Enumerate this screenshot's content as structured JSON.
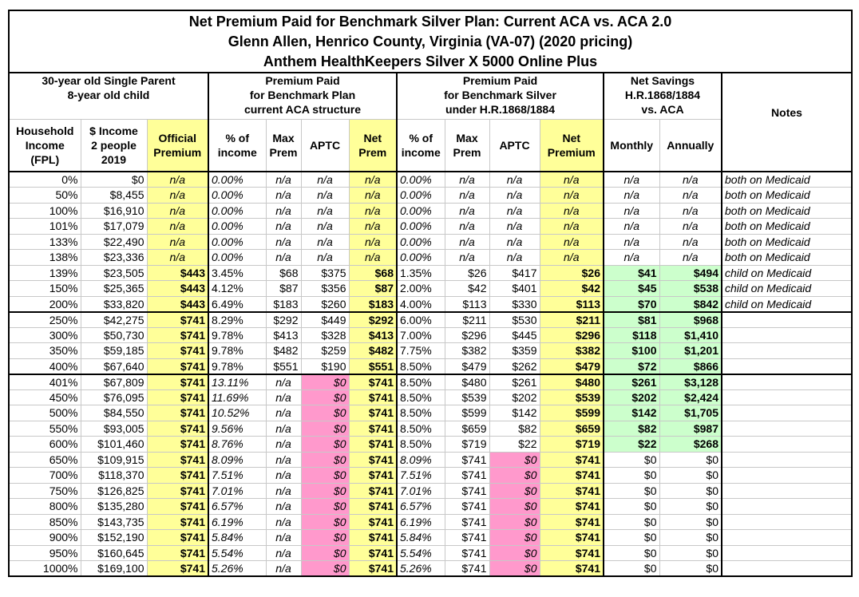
{
  "header": {
    "title": [
      "Net Premium Paid for Benchmark Silver Plan: Current ACA vs. ACA 2.0",
      "Glenn Allen, Henrico County, Virginia (VA-07) (2020 pricing)",
      "Anthem HealthKeepers Silver X 5000 Online Plus"
    ]
  },
  "groups": [
    [
      "30-year old Single Parent",
      "8-year old child"
    ],
    [
      "Premium Paid",
      "for Benchmark Plan",
      "current ACA structure"
    ],
    [
      "Premium Paid",
      "for Benchmark Silver",
      "under H.R.1868/1884"
    ],
    [
      "Net Savings",
      "H.R.1868/1884",
      "vs. ACA"
    ],
    [
      "Notes"
    ]
  ],
  "table": {
    "columns": [
      [
        "Household",
        "Income",
        "(FPL)"
      ],
      [
        "$ Income",
        "2 people",
        "2019"
      ],
      [
        "Official",
        "Premium"
      ],
      [
        "% of",
        "income"
      ],
      [
        "Max",
        "Prem"
      ],
      [
        "APTC"
      ],
      [
        "Net",
        "Prem"
      ],
      [
        "% of",
        "income"
      ],
      [
        "Max",
        "Prem"
      ],
      [
        "APTC"
      ],
      [
        "Net",
        "Premium"
      ],
      [
        "Monthly"
      ],
      [
        "Annually"
      ]
    ],
    "rows": [
      [
        "0%",
        "$0",
        "n/a",
        "0.00%",
        "n/a",
        "n/a",
        "n/a",
        "0.00%",
        "n/a",
        "n/a",
        "n/a",
        "n/a",
        "n/a",
        "both on Medicaid"
      ],
      [
        "50%",
        "$8,455",
        "n/a",
        "0.00%",
        "n/a",
        "n/a",
        "n/a",
        "0.00%",
        "n/a",
        "n/a",
        "n/a",
        "n/a",
        "n/a",
        "both on Medicaid"
      ],
      [
        "100%",
        "$16,910",
        "n/a",
        "0.00%",
        "n/a",
        "n/a",
        "n/a",
        "0.00%",
        "n/a",
        "n/a",
        "n/a",
        "n/a",
        "n/a",
        "both on Medicaid"
      ],
      [
        "101%",
        "$17,079",
        "n/a",
        "0.00%",
        "n/a",
        "n/a",
        "n/a",
        "0.00%",
        "n/a",
        "n/a",
        "n/a",
        "n/a",
        "n/a",
        "both on Medicaid"
      ],
      [
        "133%",
        "$22,490",
        "n/a",
        "0.00%",
        "n/a",
        "n/a",
        "n/a",
        "0.00%",
        "n/a",
        "n/a",
        "n/a",
        "n/a",
        "n/a",
        "both on Medicaid"
      ],
      [
        "138%",
        "$23,336",
        "n/a",
        "0.00%",
        "n/a",
        "n/a",
        "n/a",
        "0.00%",
        "n/a",
        "n/a",
        "n/a",
        "n/a",
        "n/a",
        "both on Medicaid"
      ],
      [
        "139%",
        "$23,505",
        "$443",
        "3.45%",
        "$68",
        "$375",
        "$68",
        "1.35%",
        "$26",
        "$417",
        "$26",
        "$41",
        "$494",
        "child on Medicaid"
      ],
      [
        "150%",
        "$25,365",
        "$443",
        "4.12%",
        "$87",
        "$356",
        "$87",
        "2.00%",
        "$42",
        "$401",
        "$42",
        "$45",
        "$538",
        "child on Medicaid"
      ],
      [
        "200%",
        "$33,820",
        "$443",
        "6.49%",
        "$183",
        "$260",
        "$183",
        "4.00%",
        "$113",
        "$330",
        "$113",
        "$70",
        "$842",
        "child on Medicaid"
      ],
      [
        "250%",
        "$42,275",
        "$741",
        "8.29%",
        "$292",
        "$449",
        "$292",
        "6.00%",
        "$211",
        "$530",
        "$211",
        "$81",
        "$968"
      ],
      [
        "300%",
        "$50,730",
        "$741",
        "9.78%",
        "$413",
        "$328",
        "$413",
        "7.00%",
        "$296",
        "$445",
        "$296",
        "$118",
        "$1,410"
      ],
      [
        "350%",
        "$59,185",
        "$741",
        "9.78%",
        "$482",
        "$259",
        "$482",
        "7.75%",
        "$382",
        "$359",
        "$382",
        "$100",
        "$1,201"
      ],
      [
        "400%",
        "$67,640",
        "$741",
        "9.78%",
        "$551",
        "$190",
        "$551",
        "8.50%",
        "$479",
        "$262",
        "$479",
        "$72",
        "$866"
      ],
      [
        "401%",
        "$67,809",
        "$741",
        "13.11%",
        "n/a",
        "$0",
        "$741",
        "8.50%",
        "$480",
        "$261",
        "$480",
        "$261",
        "$3,128"
      ],
      [
        "450%",
        "$76,095",
        "$741",
        "11.69%",
        "n/a",
        "$0",
        "$741",
        "8.50%",
        "$539",
        "$202",
        "$539",
        "$202",
        "$2,424"
      ],
      [
        "500%",
        "$84,550",
        "$741",
        "10.52%",
        "n/a",
        "$0",
        "$741",
        "8.50%",
        "$599",
        "$142",
        "$599",
        "$142",
        "$1,705"
      ],
      [
        "550%",
        "$93,005",
        "$741",
        "9.56%",
        "n/a",
        "$0",
        "$741",
        "8.50%",
        "$659",
        "$82",
        "$659",
        "$82",
        "$987"
      ],
      [
        "600%",
        "$101,460",
        "$741",
        "8.76%",
        "n/a",
        "$0",
        "$741",
        "8.50%",
        "$719",
        "$22",
        "$719",
        "$22",
        "$268"
      ],
      [
        "650%",
        "$109,915",
        "$741",
        "8.09%",
        "n/a",
        "$0",
        "$741",
        "8.09%",
        "$741",
        "$0",
        "$741",
        "$0",
        "$0"
      ],
      [
        "700%",
        "$118,370",
        "$741",
        "7.51%",
        "n/a",
        "$0",
        "$741",
        "7.51%",
        "$741",
        "$0",
        "$741",
        "$0",
        "$0"
      ],
      [
        "750%",
        "$126,825",
        "$741",
        "7.01%",
        "n/a",
        "$0",
        "$741",
        "7.01%",
        "$741",
        "$0",
        "$741",
        "$0",
        "$0"
      ],
      [
        "800%",
        "$135,280",
        "$741",
        "6.57%",
        "n/a",
        "$0",
        "$741",
        "6.57%",
        "$741",
        "$0",
        "$741",
        "$0",
        "$0"
      ],
      [
        "850%",
        "$143,735",
        "$741",
        "6.19%",
        "n/a",
        "$0",
        "$741",
        "6.19%",
        "$741",
        "$0",
        "$741",
        "$0",
        "$0"
      ],
      [
        "900%",
        "$152,190",
        "$741",
        "5.84%",
        "n/a",
        "$0",
        "$741",
        "5.84%",
        "$741",
        "$0",
        "$741",
        "$0",
        "$0"
      ],
      [
        "950%",
        "$160,645",
        "$741",
        "5.54%",
        "n/a",
        "$0",
        "$741",
        "5.54%",
        "$741",
        "$0",
        "$741",
        "$0",
        "$0"
      ],
      [
        "1000%",
        "$169,100",
        "$741",
        "5.26%",
        "n/a",
        "$0",
        "$741",
        "5.26%",
        "$741",
        "$0",
        "$741",
        "$0",
        "$0"
      ]
    ]
  }
}
